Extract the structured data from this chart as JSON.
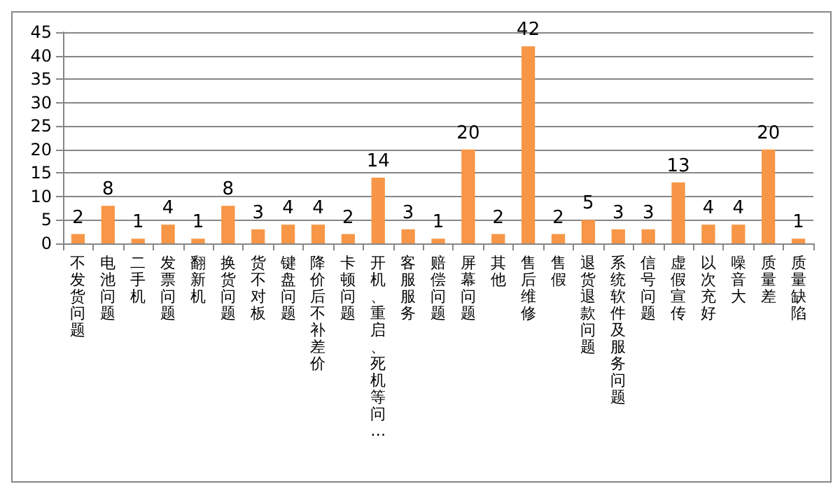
{
  "chart_data": {
    "type": "bar",
    "categories": [
      "不发货问题",
      "电池问题",
      "二手机",
      "发票问题",
      "翻新机",
      "换货问题",
      "货不对板",
      "键盘问题",
      "降价后不补差价",
      "卡顿问题",
      "开机、重启、死机等问…",
      "客服服务",
      "赔偿问题",
      "屏幕问题",
      "其他",
      "售后维修",
      "售假",
      "退货退款问题",
      "系统软件及服务问题",
      "信号问题",
      "虚假宣传",
      "以次充好",
      "噪音大",
      "质量差",
      "质量缺陷"
    ],
    "values": [
      2,
      8,
      1,
      4,
      1,
      8,
      3,
      4,
      4,
      2,
      14,
      3,
      1,
      20,
      2,
      42,
      2,
      5,
      3,
      3,
      13,
      4,
      4,
      20,
      1
    ],
    "color": "#f79646",
    "ylim": [
      0,
      45
    ],
    "yticks": [
      0,
      5,
      10,
      15,
      20,
      25,
      30,
      35,
      40,
      45
    ],
    "grid": "y",
    "data_labels": true
  }
}
